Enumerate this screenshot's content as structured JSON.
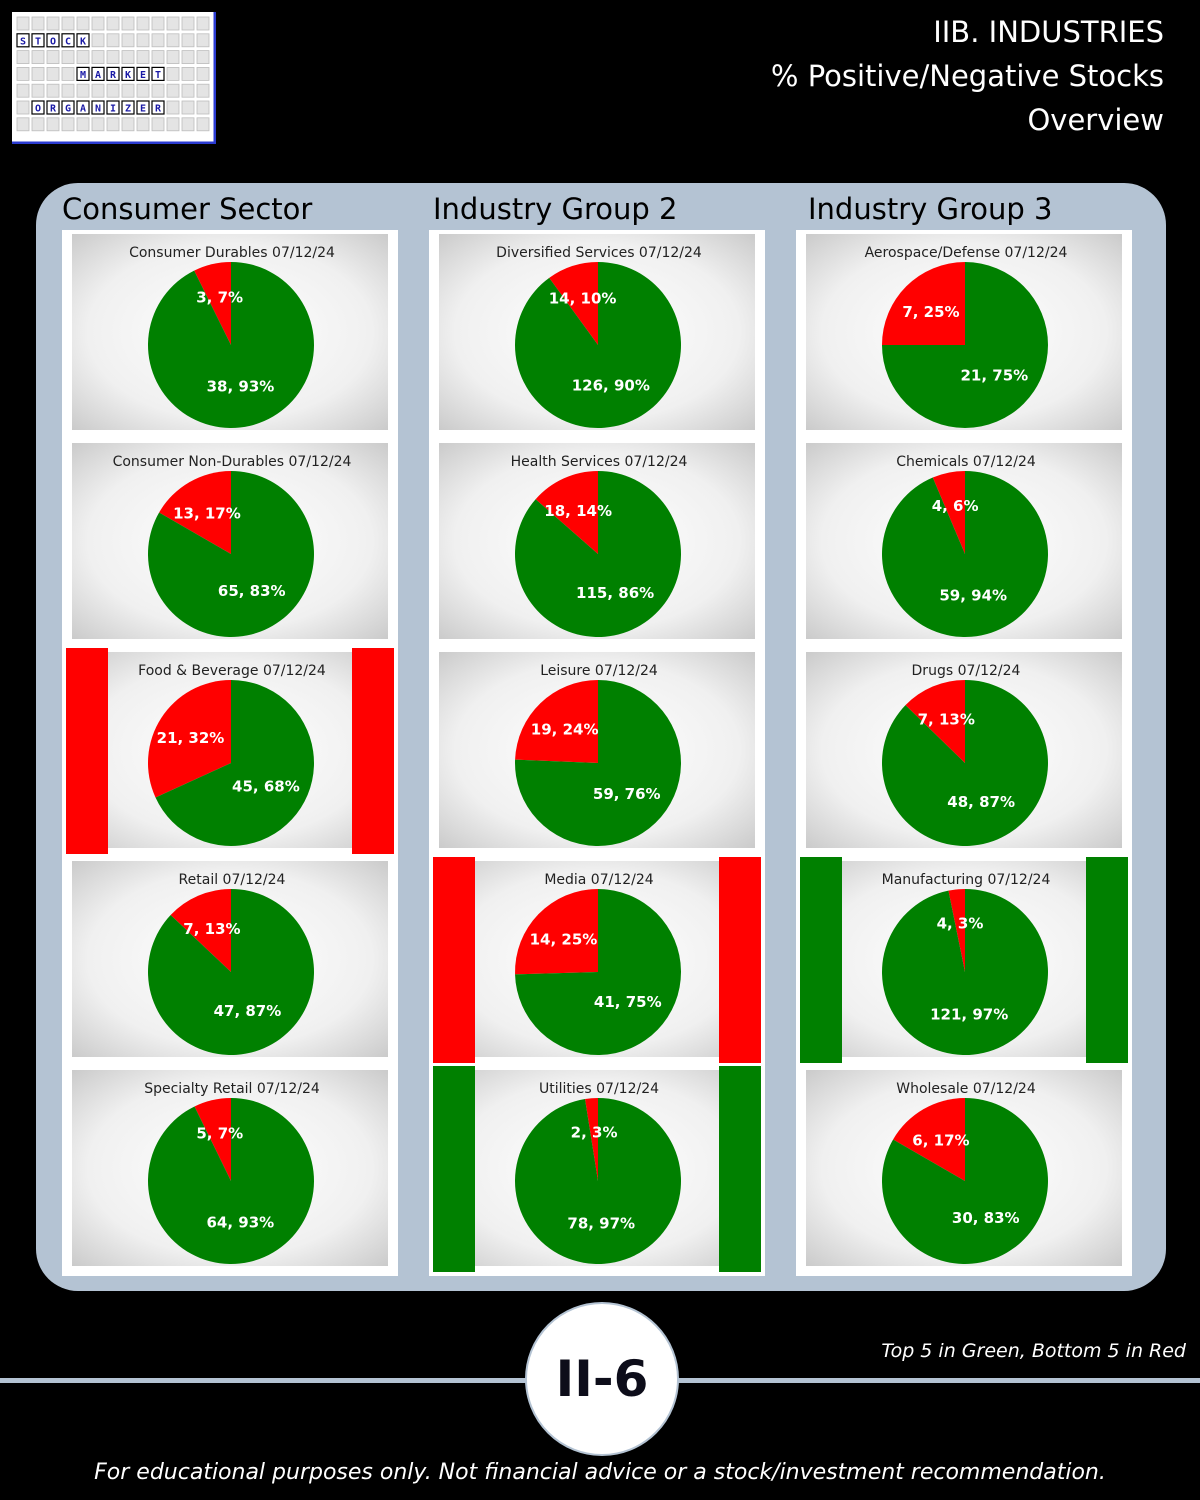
{
  "header": {
    "title_lines": [
      "IIB. INDUSTRIES",
      "% Positive/Negative Stocks",
      "Overview"
    ]
  },
  "logo": {
    "words": [
      "STOCK",
      "MARKET",
      "ORGANIZER"
    ]
  },
  "columns": [
    "Consumer Sector",
    "Industry Group 2",
    "Industry Group 3"
  ],
  "colors": {
    "positive": "#008000",
    "negative": "#ff0000",
    "panel": "#b4c3d3",
    "page_bg": "#000000"
  },
  "chart_data": [
    {
      "type": "pie",
      "title": "Consumer Durables 07/12/24",
      "labels": [
        "3, 7%",
        "38, 93%"
      ],
      "values": [
        3,
        38
      ],
      "slices": [
        "negative",
        "positive"
      ],
      "highlight": null
    },
    {
      "type": "pie",
      "title": "Diversified Services 07/12/24",
      "labels": [
        "14, 10%",
        "126, 90%"
      ],
      "values": [
        14,
        126
      ],
      "slices": [
        "negative",
        "positive"
      ],
      "highlight": null
    },
    {
      "type": "pie",
      "title": "Aerospace/Defense 07/12/24",
      "labels": [
        "7, 25%",
        "21, 75%"
      ],
      "values": [
        7,
        21
      ],
      "slices": [
        "negative",
        "positive"
      ],
      "highlight": null
    },
    {
      "type": "pie",
      "title": "Consumer Non-Durables 07/12/24",
      "labels": [
        "13, 17%",
        "65, 83%"
      ],
      "values": [
        13,
        65
      ],
      "slices": [
        "negative",
        "positive"
      ],
      "highlight": null
    },
    {
      "type": "pie",
      "title": "Health Services 07/12/24",
      "labels": [
        "18, 14%",
        "115, 86%"
      ],
      "values": [
        18,
        115
      ],
      "slices": [
        "negative",
        "positive"
      ],
      "highlight": null
    },
    {
      "type": "pie",
      "title": "Chemicals 07/12/24",
      "labels": [
        "4, 6%",
        "59, 94%"
      ],
      "values": [
        4,
        59
      ],
      "slices": [
        "negative",
        "positive"
      ],
      "highlight": null
    },
    {
      "type": "pie",
      "title": "Food & Beverage 07/12/24",
      "labels": [
        "21, 32%",
        "45, 68%"
      ],
      "values": [
        21,
        45
      ],
      "slices": [
        "negative",
        "positive"
      ],
      "highlight": "bottom"
    },
    {
      "type": "pie",
      "title": "Leisure 07/12/24",
      "labels": [
        "19, 24%",
        "59, 76%"
      ],
      "values": [
        19,
        59
      ],
      "slices": [
        "negative",
        "positive"
      ],
      "highlight": null
    },
    {
      "type": "pie",
      "title": "Drugs 07/12/24",
      "labels": [
        "7, 13%",
        "48, 87%"
      ],
      "values": [
        7,
        48
      ],
      "slices": [
        "negative",
        "positive"
      ],
      "highlight": null
    },
    {
      "type": "pie",
      "title": "Retail 07/12/24",
      "labels": [
        "7, 13%",
        "47, 87%"
      ],
      "values": [
        7,
        47
      ],
      "slices": [
        "negative",
        "positive"
      ],
      "highlight": null
    },
    {
      "type": "pie",
      "title": "Media 07/12/24",
      "labels": [
        "14, 25%",
        "41, 75%"
      ],
      "values": [
        14,
        41
      ],
      "slices": [
        "negative",
        "positive"
      ],
      "highlight": "bottom"
    },
    {
      "type": "pie",
      "title": "Manufacturing 07/12/24",
      "labels": [
        "4, 3%",
        "121, 97%"
      ],
      "values": [
        4,
        121
      ],
      "slices": [
        "negative",
        "positive"
      ],
      "highlight": "top"
    },
    {
      "type": "pie",
      "title": "Specialty Retail 07/12/24",
      "labels": [
        "5, 7%",
        "64, 93%"
      ],
      "values": [
        5,
        64
      ],
      "slices": [
        "negative",
        "positive"
      ],
      "highlight": null
    },
    {
      "type": "pie",
      "title": "Utilities 07/12/24",
      "labels": [
        "2, 3%",
        "78, 97%"
      ],
      "values": [
        2,
        78
      ],
      "slices": [
        "negative",
        "positive"
      ],
      "highlight": "top"
    },
    {
      "type": "pie",
      "title": "Wholesale 07/12/24",
      "labels": [
        "6, 17%",
        "30, 83%"
      ],
      "values": [
        6,
        30
      ],
      "slices": [
        "negative",
        "positive"
      ],
      "highlight": null
    }
  ],
  "footer": {
    "page_number": "II-6",
    "legend_note": "Top 5 in Green, Bottom 5 in Red",
    "disclaimer": "For educational purposes only. Not financial advice or a stock/investment recommendation."
  }
}
